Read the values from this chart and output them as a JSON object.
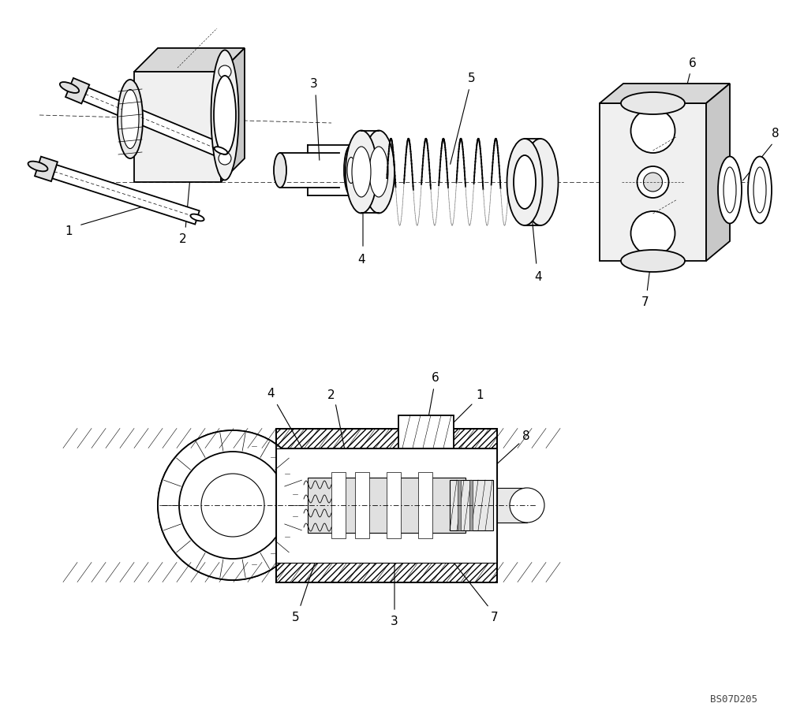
{
  "bg_color": "#ffffff",
  "line_color": "#000000",
  "fig_width": 10.0,
  "fig_height": 9.12,
  "dpi": 100,
  "watermark": "BS07D205",
  "label_fontsize": 11
}
